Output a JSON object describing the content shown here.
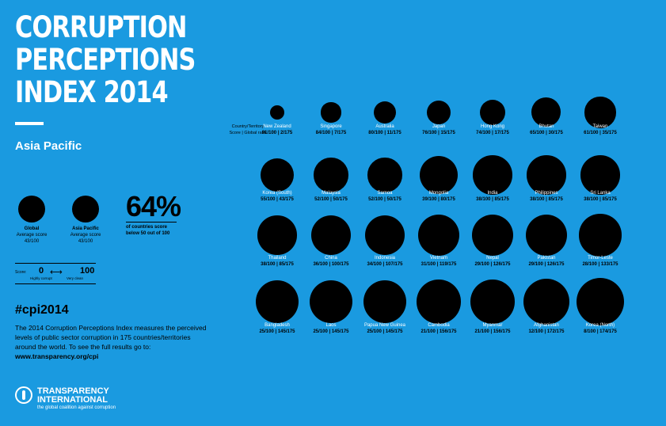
{
  "title_lines": [
    "CORRUPTION",
    "PERCEPTIONS",
    "INDEX 2014"
  ],
  "region": "Asia Pacific",
  "global": {
    "label": "Global",
    "sub": "Average score",
    "score": "43/100",
    "value": 43
  },
  "asia": {
    "label": "Asia Pacific",
    "sub": "Average score",
    "score": "43/100",
    "value": 43
  },
  "stat": {
    "big": "64%",
    "line1": "of countries score",
    "line2": "below 50 out of 100"
  },
  "scale": {
    "label": "Score:",
    "low": "0",
    "high": "100",
    "arrow": "⟷",
    "low_desc": "Highly corrupt",
    "high_desc": "Very clean"
  },
  "hashtag": "#cpi2014",
  "description": "The 2014 Corruption Perceptions Index measures the perceived levels of public sector corruption in 175 countries/territories around the world. To see the full results go to:",
  "url": "www.transparency.org/cpi",
  "logo": {
    "line1": "TRANSPARENCY",
    "line2": "INTERNATIONAL",
    "line3": "the global coalition against corruption"
  },
  "header": {
    "line1": "Country/Territory",
    "line2": "Score | Global rank"
  },
  "countries": [
    {
      "name": "New Zealand",
      "score": 91,
      "rank": 2,
      "label": "91/100 | 2/175"
    },
    {
      "name": "Singapore",
      "score": 84,
      "rank": 7,
      "label": "84/100 | 7/175"
    },
    {
      "name": "Australia",
      "score": 80,
      "rank": 11,
      "label": "80/100 | 11/175"
    },
    {
      "name": "Japan",
      "score": 76,
      "rank": 15,
      "label": "76/100 | 15/175"
    },
    {
      "name": "Hong Kong",
      "score": 74,
      "rank": 17,
      "label": "74/100 | 17/175"
    },
    {
      "name": "Bhutan",
      "score": 65,
      "rank": 30,
      "label": "65/100 | 30/175"
    },
    {
      "name": "Taiwan",
      "score": 61,
      "rank": 35,
      "label": "61/100 | 35/175"
    },
    {
      "name": "Korea (South)",
      "score": 55,
      "rank": 43,
      "label": "55/100 | 43/175"
    },
    {
      "name": "Malaysia",
      "score": 52,
      "rank": 50,
      "label": "52/100 | 50/175"
    },
    {
      "name": "Samoa",
      "score": 52,
      "rank": 50,
      "label": "52/100 | 50/175"
    },
    {
      "name": "Mongolia",
      "score": 39,
      "rank": 80,
      "label": "39/100 | 80/175"
    },
    {
      "name": "India",
      "score": 38,
      "rank": 85,
      "label": "38/100 | 85/175"
    },
    {
      "name": "Philippines",
      "score": 38,
      "rank": 85,
      "label": "38/100 | 85/175"
    },
    {
      "name": "Sri Lanka",
      "score": 38,
      "rank": 85,
      "label": "38/100 | 85/175"
    },
    {
      "name": "Thailand",
      "score": 38,
      "rank": 85,
      "label": "38/100 | 85/175"
    },
    {
      "name": "China",
      "score": 36,
      "rank": 100,
      "label": "36/100 | 100/175"
    },
    {
      "name": "Indonesia",
      "score": 34,
      "rank": 107,
      "label": "34/100 | 107/175"
    },
    {
      "name": "Vietnam",
      "score": 31,
      "rank": 119,
      "label": "31/100 | 119/175"
    },
    {
      "name": "Nepal",
      "score": 29,
      "rank": 126,
      "label": "29/100 | 126/175"
    },
    {
      "name": "Pakistan",
      "score": 29,
      "rank": 126,
      "label": "29/100 | 126/175"
    },
    {
      "name": "Timor-Leste",
      "score": 28,
      "rank": 133,
      "label": "28/100 | 133/175"
    },
    {
      "name": "Bangladesh",
      "score": 25,
      "rank": 145,
      "label": "25/100 | 145/175"
    },
    {
      "name": "Laos",
      "score": 25,
      "rank": 145,
      "label": "25/100 | 145/175"
    },
    {
      "name": "Papua New Guinea",
      "score": 25,
      "rank": 145,
      "label": "25/100 | 145/175"
    },
    {
      "name": "Cambodia",
      "score": 21,
      "rank": 156,
      "label": "21/100 | 156/175"
    },
    {
      "name": "Myanmar",
      "score": 21,
      "rank": 156,
      "label": "21/100 | 156/175"
    },
    {
      "name": "Afghanistan",
      "score": 12,
      "rank": 172,
      "label": "12/100 | 172/175"
    },
    {
      "name": "Korea (North)",
      "score": 8,
      "rank": 174,
      "label": "8/100 | 174/175"
    }
  ]
}
